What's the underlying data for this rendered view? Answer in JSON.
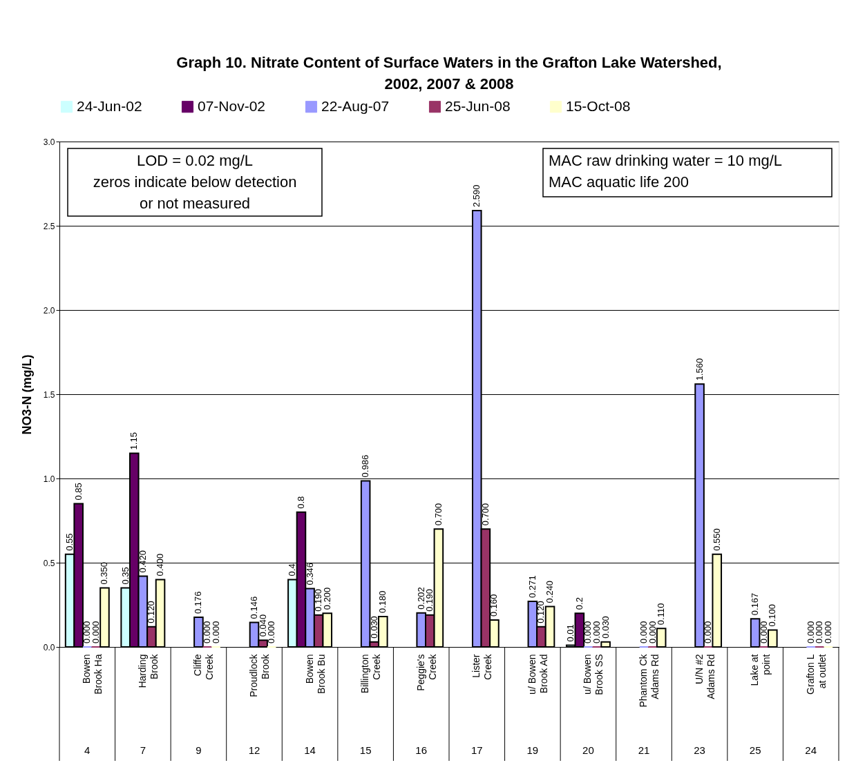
{
  "chart_data": {
    "type": "bar",
    "title": "Graph 10. Nitrate Content of Surface Waters in the Grafton Lake Watershed,\n2002, 2007 & 2008",
    "ylabel": "NO3-N (mg/L)",
    "categories": [
      "Bowen\nBrook Ha",
      "Harding\nBrook",
      "Cliffe\nCreek",
      "Proudlock\nBrook",
      "Bowen\nBrook Bu",
      "Billington\nCreek",
      "Peggie's\nCreek",
      "Lister\nCreek",
      "u/ Bowen\nBrook Ad",
      "u/ Bowen\nBrook SS",
      "Phantom Ck\nAdams Rd",
      "U/N #2\nAdams Rd",
      "Lake at\npoint",
      "Grafton L\nat outlet"
    ],
    "series": [
      {
        "name": "24-Jun-02",
        "color": "#ccffff",
        "values": [
          0.55,
          0.35,
          null,
          null,
          0.4,
          null,
          null,
          null,
          null,
          0.01,
          null,
          null,
          null,
          null
        ],
        "value_labels": [
          "0.55",
          "0.35",
          null,
          null,
          "0.4",
          null,
          null,
          null,
          null,
          "0.01",
          null,
          null,
          null,
          null
        ]
      },
      {
        "name": "07-Nov-02",
        "color": "#660066",
        "values": [
          0.85,
          1.15,
          null,
          null,
          0.8,
          null,
          null,
          null,
          null,
          0.2,
          null,
          null,
          null,
          null
        ],
        "value_labels": [
          "0.85",
          "1.15",
          null,
          null,
          "0.8",
          null,
          null,
          null,
          null,
          "0.2",
          null,
          null,
          null,
          null
        ]
      },
      {
        "name": "22-Aug-07",
        "color": "#9999ff",
        "values": [
          0.0,
          0.42,
          0.176,
          0.146,
          0.346,
          0.986,
          0.202,
          2.59,
          0.271,
          0.0,
          0.0,
          1.56,
          0.167,
          0.0
        ],
        "value_labels": [
          "0.000",
          "0.420",
          "0.176",
          "0.146",
          "0.346",
          "0.986",
          "0.202",
          "2.590",
          "0.271",
          "0.000",
          "0.000",
          "1.560",
          "0.167",
          "0.000"
        ]
      },
      {
        "name": "25-Jun-08",
        "color": "#993366",
        "values": [
          0.0,
          0.12,
          0.0,
          0.04,
          0.19,
          0.03,
          0.19,
          0.7,
          0.12,
          0.0,
          0.0,
          0.0,
          0.0,
          0.0
        ],
        "value_labels": [
          "0.000",
          "0.120",
          "0.000",
          "0.040",
          "0.190",
          "0.030",
          "0.190",
          "0.700",
          "0.120",
          "0.000",
          "0.000",
          "0.000",
          "0.000",
          "0.000"
        ]
      },
      {
        "name": "15-Oct-08",
        "color": "#ffffcc",
        "values": [
          0.35,
          0.4,
          0.0,
          0.0,
          0.2,
          0.18,
          0.7,
          0.16,
          0.24,
          0.03,
          0.11,
          0.55,
          0.1,
          0.0
        ],
        "value_labels": [
          "0.350",
          "0.400",
          "0.000",
          "0.000",
          "0.200",
          "0.180",
          "0.700",
          "0.160",
          "0.240",
          "0.030",
          "0.110",
          "0.550",
          "0.100",
          "0.000"
        ]
      }
    ],
    "ylim": [
      0,
      3
    ],
    "yticks": [
      {
        "value": 0,
        "label": "0.0"
      },
      {
        "value": 0.5,
        "label": "0.5"
      },
      {
        "value": 1,
        "label": "1.0"
      },
      {
        "value": 1.5,
        "label": "1.5"
      },
      {
        "value": 2,
        "label": "2.0"
      },
      {
        "value": 2.5,
        "label": "2.5"
      },
      {
        "value": 3,
        "label": "3.0"
      }
    ],
    "grid": "y",
    "legend": "top",
    "annotations": [
      "LOD = 0.02 mg/L\nzeros indicate below detection\nor not measured",
      "MAC raw drinking water =   10 mg/L\nMAC aquatic life              200",
      "4",
      "7",
      "9",
      "12",
      "14",
      "15",
      "16",
      "17",
      "19",
      "20",
      "21",
      "23",
      "25",
      "24"
    ]
  }
}
